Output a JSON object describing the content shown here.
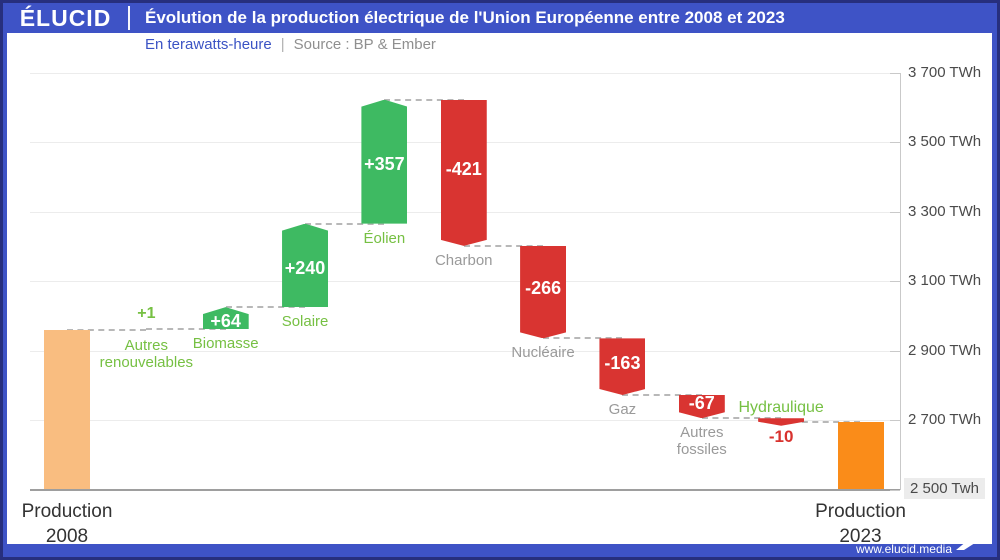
{
  "header": {
    "logo": "ÉLUCID",
    "title": "Évolution de la production électrique de l'Union Européenne entre 2008 et 2023"
  },
  "subtitle": {
    "unit": "En terawatts-heure",
    "separator": "|",
    "source": "Source : BP & Ember"
  },
  "footer": {
    "url": "www.elucid.media"
  },
  "colors": {
    "header_blue": "#3E53C6",
    "border_navy": "#272F7D",
    "green_bar": "#3EBA62",
    "green_label": "#76C043",
    "red_bar": "#D93431",
    "red_label": "#D8322E",
    "orange_start": "#F9BD80",
    "orange_end": "#FA8C19",
    "gray_label": "#9A9A9A",
    "dark_label": "#333333",
    "white": "#FFFFFF",
    "grid": "#ECECEC",
    "baseline": "#9E9E9E",
    "dash": "#B8B8B8",
    "axis_text": "#4A4A4A"
  },
  "chart_data": {
    "type": "waterfall",
    "title": "Évolution de la production électrique de l'Union Européenne entre 2008 et 2023",
    "unit": "TWh",
    "ylim": [
      2500,
      3700
    ],
    "grid": true,
    "yaxis_side": "right",
    "yticks": [
      {
        "value": 3700,
        "label": "3 700 TWh"
      },
      {
        "value": 3500,
        "label": "3 500 TWh"
      },
      {
        "value": 3300,
        "label": "3 300 TWh"
      },
      {
        "value": 3100,
        "label": "3 100 TWh"
      },
      {
        "value": 2900,
        "label": "2 900 TWh"
      },
      {
        "value": 2700,
        "label": "2 700 TWh"
      },
      {
        "value": 2500,
        "label": "2 500 Twh",
        "highlight": true
      }
    ],
    "columns": [
      {
        "name": "production-2008",
        "kind": "total",
        "value": 2960,
        "label_lines": [
          "Production",
          "2008"
        ],
        "bar_color": "orange_start",
        "label_color": "dark"
      },
      {
        "name": "autres-renouvelables",
        "kind": "delta",
        "value": 1,
        "display": "+1",
        "tiny": true,
        "label_lines": [
          "Autres",
          "renouvelables"
        ],
        "label_color": "green",
        "value_color": "green"
      },
      {
        "name": "biomasse",
        "kind": "delta",
        "value": 64,
        "display": "+64",
        "label_lines": [
          "Biomasse"
        ],
        "label_color": "green",
        "value_color": "white"
      },
      {
        "name": "solaire",
        "kind": "delta",
        "value": 240,
        "display": "+240",
        "label_lines": [
          "Solaire"
        ],
        "label_color": "green",
        "value_color": "white"
      },
      {
        "name": "eolien",
        "kind": "delta",
        "value": 357,
        "display": "+357",
        "label_lines": [
          "Éolien"
        ],
        "label_color": "green",
        "value_color": "white"
      },
      {
        "name": "charbon",
        "kind": "delta",
        "value": -421,
        "display": "-421",
        "label_lines": [
          "Charbon"
        ],
        "label_color": "gray",
        "value_color": "white"
      },
      {
        "name": "nucleaire",
        "kind": "delta",
        "value": -266,
        "display": "-266",
        "label_lines": [
          "Nucléaire"
        ],
        "label_color": "gray",
        "value_color": "white"
      },
      {
        "name": "gaz",
        "kind": "delta",
        "value": -163,
        "display": "-163",
        "label_lines": [
          "Gaz"
        ],
        "label_color": "gray",
        "value_color": "white"
      },
      {
        "name": "autres-fossiles",
        "kind": "delta",
        "value": -67,
        "display": "-67",
        "label_lines": [
          "Autres",
          "fossiles"
        ],
        "label_color": "gray",
        "value_color": "white"
      },
      {
        "name": "hydraulique",
        "kind": "delta",
        "value": -10,
        "display": "-10",
        "tiny": true,
        "label_lines": [
          "Hydraulique"
        ],
        "label_color": "green",
        "value_color": "red"
      },
      {
        "name": "production-2023",
        "kind": "total",
        "value": 2695,
        "label_lines": [
          "Production",
          "2023"
        ],
        "bar_color": "orange_end",
        "label_color": "dark"
      }
    ]
  }
}
